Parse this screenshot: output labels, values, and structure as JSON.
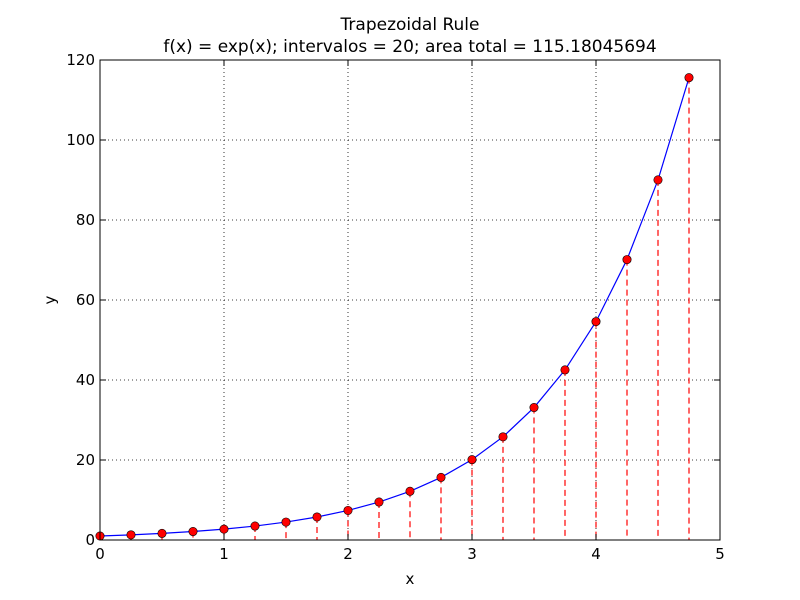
{
  "chart_data": {
    "type": "line",
    "title": "Trapezoidal Rule",
    "subtitle": "f(x) = exp(x); intervalos = 20; area total = 115.18045694",
    "xlabel": "x",
    "ylabel": "y",
    "xlim": [
      0,
      5
    ],
    "ylim": [
      0,
      120
    ],
    "xticks": [
      0,
      1,
      2,
      3,
      4,
      5
    ],
    "yticks": [
      0,
      20,
      40,
      60,
      80,
      100,
      120
    ],
    "grid": true,
    "series": [
      {
        "x": [
          0,
          0.25,
          0.5,
          0.75,
          1.0,
          1.25,
          1.5,
          1.75,
          2.0,
          2.25,
          2.5,
          2.75,
          3.0,
          3.25,
          3.5,
          3.75,
          4.0,
          4.25,
          4.5,
          4.75
        ],
        "y": [
          1.0,
          1.284,
          1.6487,
          2.117,
          2.7183,
          3.4903,
          4.4817,
          5.7546,
          7.3891,
          9.4877,
          12.1825,
          15.6426,
          20.0855,
          25.7903,
          33.1155,
          42.5211,
          54.5982,
          70.1054,
          90.0171,
          115.5843
        ]
      }
    ],
    "colors": {
      "line": "#0000ff",
      "markers": "#ff0000",
      "drop_lines": "#ff0000",
      "grid": "#000000"
    }
  }
}
